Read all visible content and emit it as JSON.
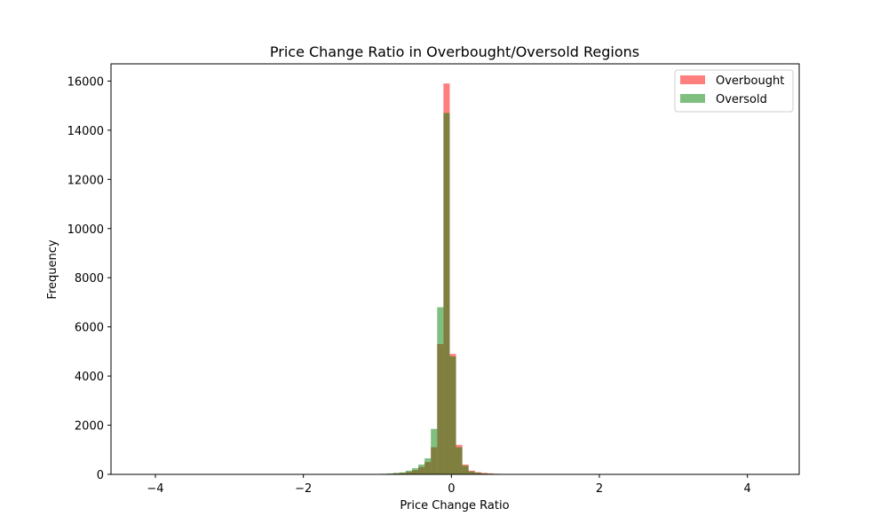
{
  "chart_data": {
    "type": "bar",
    "title": "Price Change Ratio in Overbought/Oversold Regions",
    "xlabel": "Price Change Ratio",
    "ylabel": "Frequency",
    "xlim": [
      -4.6,
      4.7
    ],
    "ylim": [
      0,
      16700
    ],
    "xticks": [
      -4,
      -2,
      0,
      2,
      4
    ],
    "xtick_labels": [
      "−4",
      "−2",
      "0",
      "2",
      "4"
    ],
    "yticks": [
      0,
      2000,
      4000,
      6000,
      8000,
      10000,
      12000,
      14000,
      16000
    ],
    "ytick_labels": [
      "0",
      "2000",
      "4000",
      "6000",
      "8000",
      "10000",
      "12000",
      "14000",
      "16000"
    ],
    "grid": false,
    "legend_position": "top-right",
    "bin_width": 0.085,
    "bin_centers": [
      -1.0,
      -0.915,
      -0.83,
      -0.745,
      -0.66,
      -0.575,
      -0.49,
      -0.405,
      -0.32,
      -0.235,
      -0.15,
      -0.065,
      0.02,
      0.105,
      0.19,
      0.275,
      0.36,
      0.445,
      0.53,
      0.615,
      0.7,
      0.785,
      0.87,
      0.955
    ],
    "series": [
      {
        "name": "Overbought",
        "color": "#ff0000",
        "opacity": 0.5,
        "values": [
          0,
          10,
          20,
          40,
          60,
          100,
          170,
          300,
          500,
          1100,
          5300,
          15900,
          4900,
          1200,
          400,
          150,
          90,
          60,
          40,
          25,
          15,
          10,
          8,
          5
        ]
      },
      {
        "name": "Oversold",
        "color": "#008000",
        "opacity": 0.5,
        "values": [
          15,
          25,
          40,
          60,
          80,
          150,
          250,
          400,
          650,
          1850,
          6800,
          14700,
          4800,
          1100,
          350,
          120,
          70,
          40,
          25,
          15,
          8,
          5,
          3,
          2
        ]
      }
    ]
  }
}
